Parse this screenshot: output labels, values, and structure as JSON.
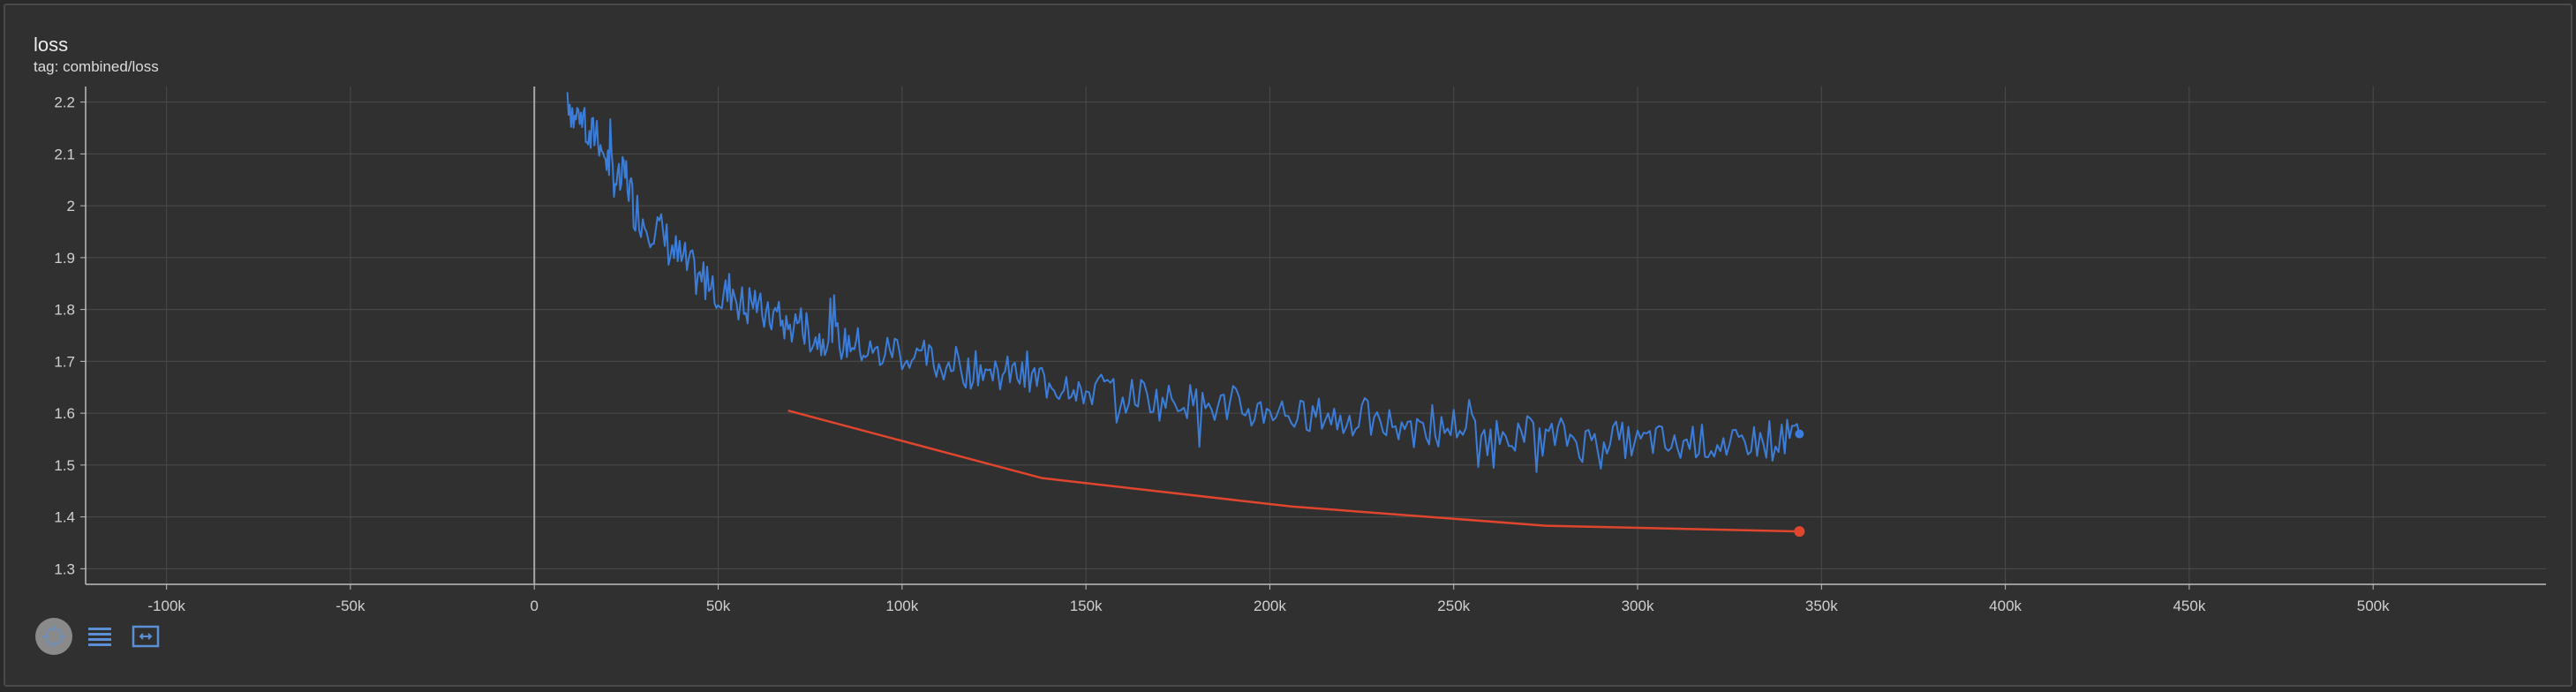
{
  "card": {
    "title": "loss",
    "subtitle": "tag: combined/loss"
  },
  "toolbar": {
    "items": [
      {
        "icon": "crosshair-icon",
        "active": true
      },
      {
        "icon": "list-icon",
        "active": false
      },
      {
        "icon": "fit-to-data-icon",
        "active": false
      }
    ]
  },
  "colors": {
    "series_blue": "#3b7dd8",
    "series_red": "#e0452e",
    "grid": "#4b4b4b",
    "axis": "#bdbdbd",
    "tick_text": "#d0d0d0"
  },
  "chart_data": {
    "type": "line",
    "title": "loss",
    "subtitle": "tag: combined/loss",
    "xlim": [
      -122000,
      547000
    ],
    "ylim": [
      1.27,
      2.23
    ],
    "x_ticks": [
      -100000,
      -50000,
      0,
      50000,
      100000,
      150000,
      200000,
      250000,
      300000,
      350000,
      400000,
      450000,
      500000
    ],
    "x_tick_labels": [
      "-100k",
      "-50k",
      "0",
      "50k",
      "100k",
      "150k",
      "200k",
      "250k",
      "300k",
      "350k",
      "400k",
      "450k",
      "500k"
    ],
    "y_ticks": [
      1.3,
      1.4,
      1.5,
      1.6,
      1.7,
      1.8,
      1.9,
      2.0,
      2.1,
      2.2
    ],
    "y_tick_labels": [
      "1.3",
      "1.4",
      "1.5",
      "1.6",
      "1.7",
      "1.8",
      "1.9",
      "2",
      "2.1",
      "2.2"
    ],
    "grid": true,
    "series": [
      {
        "x": [
          9000,
          11000,
          13000,
          15000,
          17000,
          19000,
          21000,
          23000,
          25000,
          27000,
          30000,
          33000,
          36000,
          39000,
          42000,
          45000,
          48000,
          51000,
          54000,
          57000,
          60000,
          63000,
          66000,
          69000,
          72000,
          75000,
          78000,
          81000,
          84000,
          87000,
          90000,
          94000,
          98000,
          102000,
          106000,
          110000,
          114000,
          118000,
          122000,
          126000,
          130000,
          134000,
          138000,
          142000,
          146000,
          150000,
          155000,
          160000,
          165000,
          170000,
          175000,
          180000,
          185000,
          190000,
          195000,
          200000,
          205000,
          210000,
          215000,
          220000,
          225000,
          230000,
          235000,
          240000,
          245000,
          250000,
          255000,
          260000,
          265000,
          270000,
          275000,
          280000,
          285000,
          290000,
          295000,
          300000,
          305000,
          310000,
          315000,
          320000,
          325000,
          330000,
          335000,
          340000,
          344000
        ],
        "y": [
          2.22,
          2.16,
          2.2,
          2.12,
          2.15,
          2.1,
          2.07,
          2.04,
          2.06,
          2.0,
          1.97,
          1.96,
          1.93,
          1.9,
          1.88,
          1.85,
          1.87,
          1.82,
          1.84,
          1.8,
          1.82,
          1.78,
          1.79,
          1.76,
          1.78,
          1.75,
          1.74,
          1.76,
          1.73,
          1.74,
          1.72,
          1.71,
          1.73,
          1.7,
          1.71,
          1.69,
          1.7,
          1.68,
          1.69,
          1.67,
          1.68,
          1.66,
          1.67,
          1.65,
          1.66,
          1.64,
          1.65,
          1.63,
          1.64,
          1.62,
          1.63,
          1.62,
          1.61,
          1.62,
          1.6,
          1.61,
          1.6,
          1.59,
          1.6,
          1.58,
          1.6,
          1.57,
          1.59,
          1.58,
          1.56,
          1.58,
          1.57,
          1.55,
          1.57,
          1.56,
          1.55,
          1.56,
          1.54,
          1.56,
          1.55,
          1.54,
          1.55,
          1.53,
          1.55,
          1.54,
          1.53,
          1.55,
          1.54,
          1.55,
          1.56
        ]
      },
      {
        "x": [
          69000,
          138000,
          206000,
          275000,
          344000
        ],
        "y": [
          1.605,
          1.475,
          1.42,
          1.383,
          1.372
        ]
      }
    ]
  }
}
